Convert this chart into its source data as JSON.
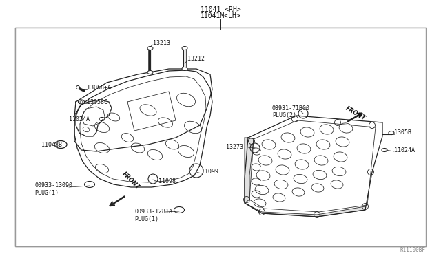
{
  "bg_color": "#ffffff",
  "line_color": "#222222",
  "text_color": "#111111",
  "fig_width": 6.4,
  "fig_height": 3.72,
  "title1": "11041 <RH>",
  "title2": "11041M<LH>",
  "ref_code": "R11100BF"
}
